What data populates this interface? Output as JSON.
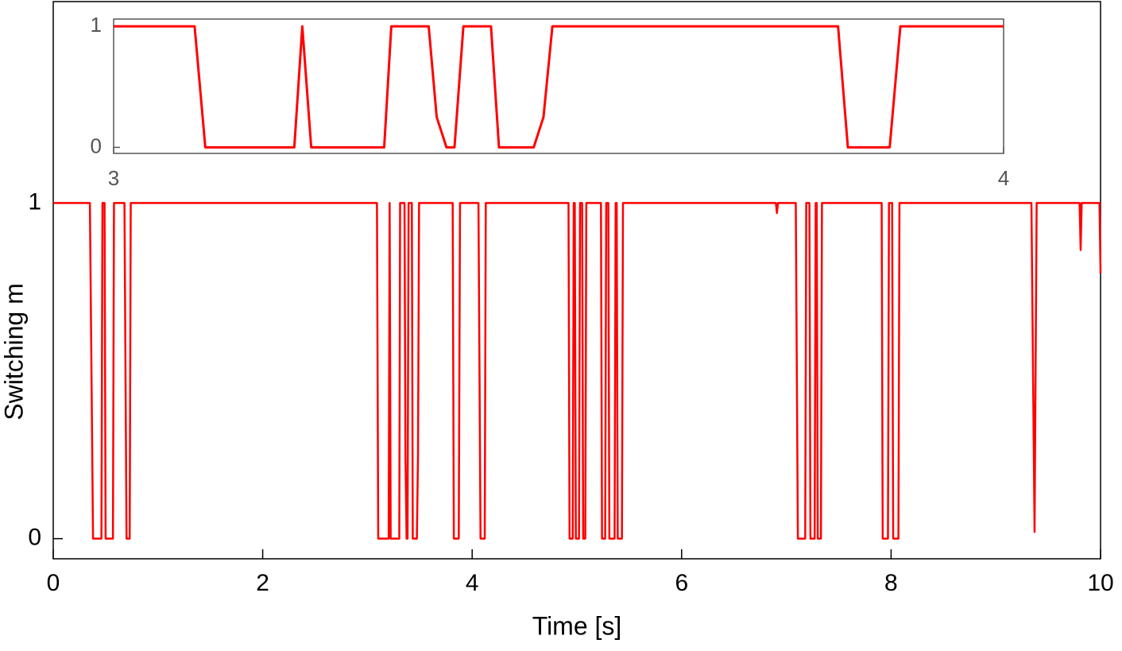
{
  "chart_data": [
    {
      "type": "line",
      "xlabel": "Time [s]",
      "ylabel": "Switching m",
      "xlim": [
        0,
        10
      ],
      "ylim": [
        -0.06,
        1.6
      ],
      "xticks": [
        0,
        2,
        4,
        6,
        8,
        10
      ],
      "yticks": [
        0,
        1
      ],
      "series": [
        {
          "color": "#ff0000",
          "x": [
            0,
            0.35,
            0.38,
            0.46,
            0.47,
            0.49,
            0.5,
            0.57,
            0.58,
            0.68,
            0.7,
            0.73,
            0.74,
            3.091,
            3.103,
            3.203,
            3.212,
            3.222,
            3.304,
            3.312,
            3.354,
            3.363,
            3.374,
            3.383,
            3.393,
            3.424,
            3.433,
            3.472,
            3.483,
            3.493,
            3.814,
            3.825,
            3.872,
            3.884,
            4.06,
            4.08,
            4.12,
            4.13,
            4.92,
            4.93,
            4.96,
            4.97,
            4.98,
            4.99,
            5.02,
            5.03,
            5.05,
            5.06,
            5.08,
            5.09,
            5.23,
            5.24,
            5.27,
            5.28,
            5.3,
            5.31,
            5.36,
            5.37,
            5.38,
            5.39,
            5.43,
            5.44,
            6.9,
            6.91,
            6.92,
            7.09,
            7.11,
            7.18,
            7.19,
            7.22,
            7.23,
            7.27,
            7.28,
            7.29,
            7.3,
            7.33,
            7.34,
            7.91,
            7.92,
            7.97,
            7.98,
            8.01,
            8.02,
            8.07,
            8.08,
            9.34,
            9.37,
            9.39,
            9.8,
            9.81,
            9.82,
            9.99,
            10
          ],
          "values": [
            1,
            1,
            0,
            0,
            1,
            1,
            0,
            0,
            1,
            1,
            0,
            0,
            1,
            1,
            0,
            0,
            1,
            0,
            0,
            1,
            1,
            0.25,
            0,
            0,
            1,
            1,
            0,
            0,
            0.25,
            1,
            1,
            0,
            0,
            1,
            1,
            0,
            0,
            1,
            1,
            0,
            0,
            1,
            1,
            0,
            0,
            1,
            1,
            0,
            0,
            1,
            1,
            0,
            0,
            1,
            1,
            0,
            0,
            1,
            1,
            0,
            0,
            1,
            1,
            0.97,
            1,
            1,
            0,
            0,
            1,
            1,
            0,
            0,
            1,
            1,
            0,
            0,
            1,
            1,
            0,
            0,
            1,
            1,
            0,
            0,
            1,
            1,
            0.02,
            1,
            1,
            0.86,
            1,
            1,
            0.79
          ]
        }
      ]
    },
    {
      "type": "line",
      "xlim": [
        3,
        4
      ],
      "ylim": [
        -0.05,
        1.06
      ],
      "xticks": [
        3,
        4
      ],
      "yticks": [
        0,
        1
      ],
      "series": [
        {
          "color": "#ff0000",
          "x": [
            3,
            3.091,
            3.103,
            3.203,
            3.212,
            3.222,
            3.304,
            3.312,
            3.354,
            3.363,
            3.374,
            3.383,
            3.393,
            3.424,
            3.433,
            3.472,
            3.483,
            3.493,
            3.814,
            3.825,
            3.872,
            3.884,
            4
          ],
          "values": [
            1,
            1,
            0,
            0,
            1,
            0,
            0,
            1,
            1,
            0.25,
            0,
            0,
            1,
            1,
            0,
            0,
            0.25,
            1,
            1,
            0,
            0,
            1,
            1
          ]
        }
      ]
    }
  ]
}
